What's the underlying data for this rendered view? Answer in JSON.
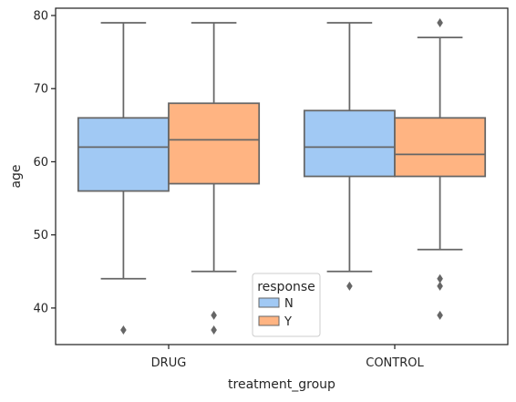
{
  "chart_data": {
    "type": "boxplot",
    "title": "",
    "xlabel": "treatment_group",
    "ylabel": "age",
    "ylim": [
      35,
      81
    ],
    "yticks": [
      40,
      50,
      60,
      70,
      80
    ],
    "categories": [
      "DRUG",
      "CONTROL"
    ],
    "hue_title": "response",
    "legend_position": "lower center",
    "grid": false,
    "series": [
      {
        "name": "N",
        "color": "#a1c9f4",
        "boxes": [
          {
            "category": "DRUG",
            "whisker_low": 44,
            "q1": 56,
            "median": 62,
            "q3": 66,
            "whisker_high": 79,
            "outliers": [
              37
            ]
          },
          {
            "category": "CONTROL",
            "whisker_low": 45,
            "q1": 58,
            "median": 62,
            "q3": 67,
            "whisker_high": 79,
            "outliers": [
              43
            ]
          }
        ]
      },
      {
        "name": "Y",
        "color": "#ffb482",
        "boxes": [
          {
            "category": "DRUG",
            "whisker_low": 45,
            "q1": 57,
            "median": 63,
            "q3": 68,
            "whisker_high": 79,
            "outliers": [
              37,
              39
            ]
          },
          {
            "category": "CONTROL",
            "whisker_low": 48,
            "q1": 58,
            "median": 61,
            "q3": 66,
            "whisker_high": 77,
            "outliers": [
              39,
              43,
              44,
              79
            ]
          }
        ]
      }
    ]
  }
}
